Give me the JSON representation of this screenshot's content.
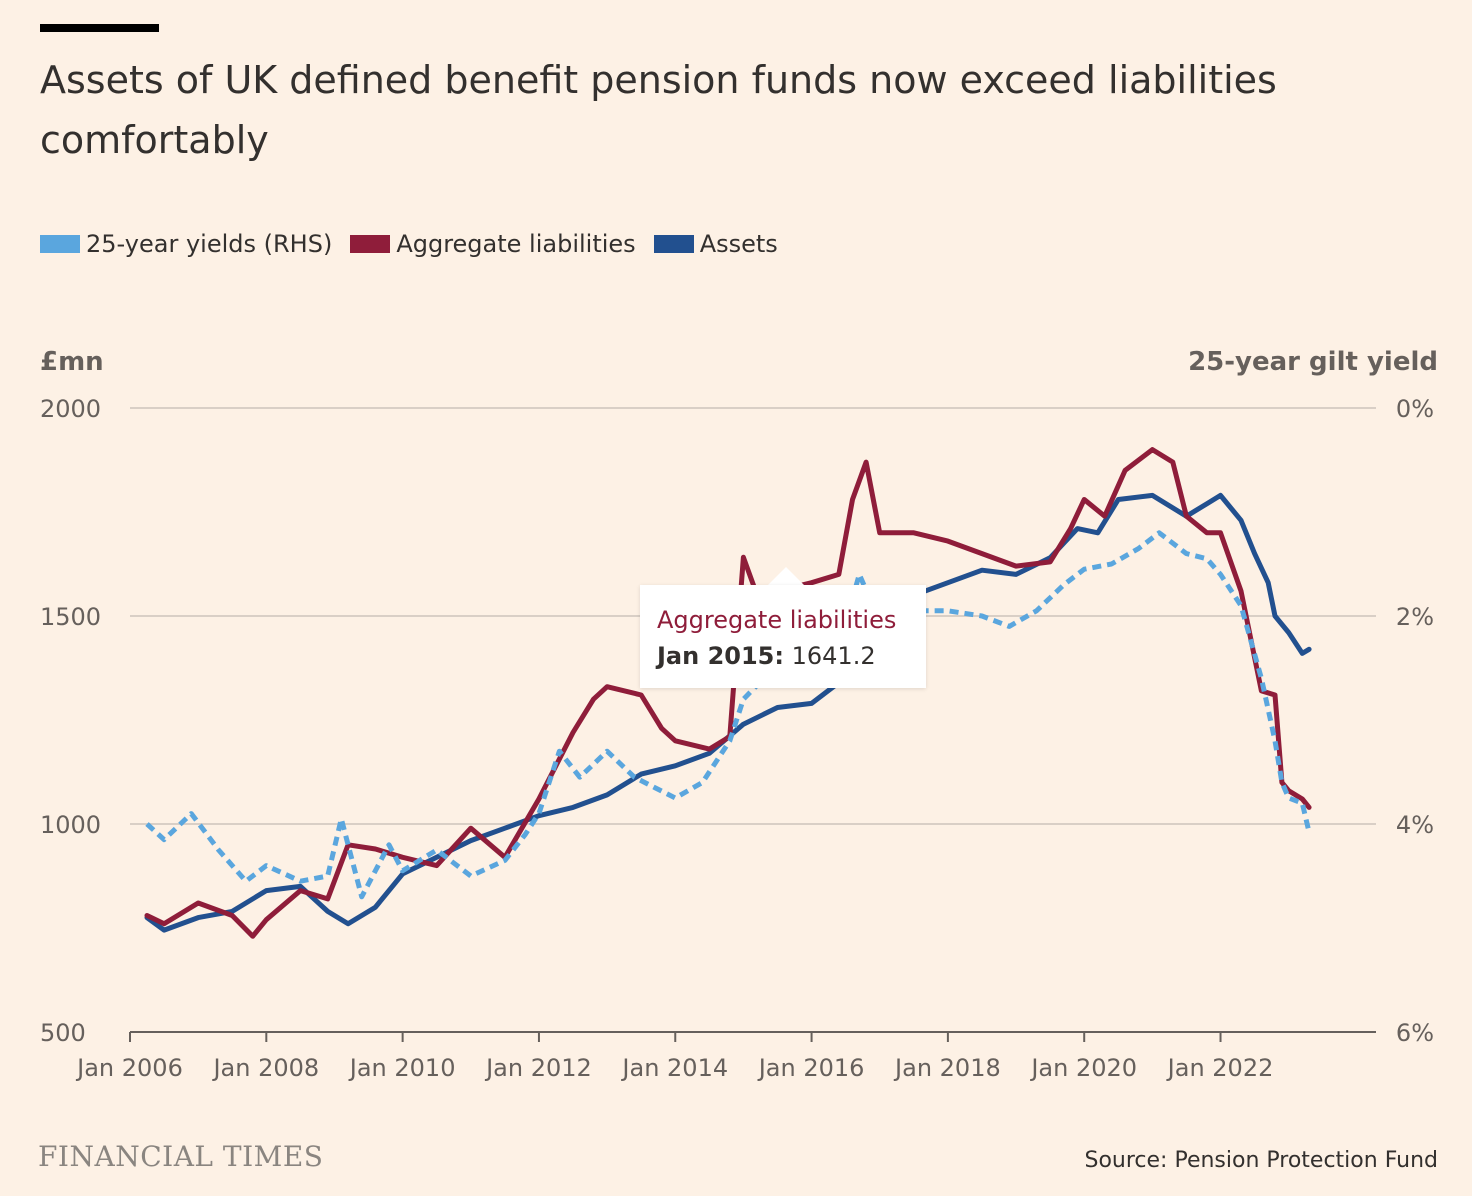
{
  "title": "Assets of UK defined benefit pension funds now exceed liabilities comfortably",
  "legend": [
    {
      "label": "25-year yields (RHS)",
      "color": "#5aa6de"
    },
    {
      "label": "Aggregate liabilities",
      "color": "#8f1d3a"
    },
    {
      "label": "Assets",
      "color": "#22508f"
    }
  ],
  "tooltip": {
    "series": "Aggregate liabilities",
    "date": "Jan 2015:",
    "value": "1641.2"
  },
  "footer": {
    "brand": "FINANCIAL TIMES",
    "source": "Source: Pension Protection Fund"
  },
  "chart_data": {
    "type": "line",
    "y_left": {
      "label": "£mn",
      "range": [
        500,
        2000
      ],
      "ticks": [
        "2000",
        "1500",
        "1000",
        "500"
      ]
    },
    "y_right": {
      "label": "25-year gilt yield",
      "range": [
        0,
        6
      ],
      "inverted": true,
      "ticks": [
        "0%",
        "2%",
        "4%",
        "6%"
      ]
    },
    "x_ticks": [
      "Jan 2006",
      "Jan 2008",
      "Jan 2010",
      "Jan 2012",
      "Jan 2014",
      "Jan 2016",
      "Jan 2018",
      "Jan 2020",
      "Jan 2022"
    ],
    "grid": true,
    "series": [
      {
        "name": "Assets",
        "color": "#22508f",
        "axis": "left",
        "dashed": false,
        "points": [
          [
            2006.25,
            775
          ],
          [
            2006.5,
            745
          ],
          [
            2007.0,
            775
          ],
          [
            2007.5,
            790
          ],
          [
            2008.0,
            840
          ],
          [
            2008.5,
            850
          ],
          [
            2008.9,
            790
          ],
          [
            2009.2,
            760
          ],
          [
            2009.6,
            800
          ],
          [
            2010.0,
            880
          ],
          [
            2010.5,
            920
          ],
          [
            2011.0,
            960
          ],
          [
            2011.5,
            990
          ],
          [
            2012.0,
            1020
          ],
          [
            2012.5,
            1040
          ],
          [
            2013.0,
            1070
          ],
          [
            2013.5,
            1120
          ],
          [
            2014.0,
            1140
          ],
          [
            2014.5,
            1170
          ],
          [
            2015.0,
            1240
          ],
          [
            2015.5,
            1280
          ],
          [
            2016.0,
            1290
          ],
          [
            2016.4,
            1340
          ],
          [
            2016.7,
            1470
          ],
          [
            2017.0,
            1510
          ],
          [
            2017.5,
            1550
          ],
          [
            2018.0,
            1580
          ],
          [
            2018.5,
            1610
          ],
          [
            2019.0,
            1600
          ],
          [
            2019.5,
            1640
          ],
          [
            2019.9,
            1710
          ],
          [
            2020.2,
            1700
          ],
          [
            2020.5,
            1780
          ],
          [
            2021.0,
            1790
          ],
          [
            2021.5,
            1740
          ],
          [
            2021.8,
            1770
          ],
          [
            2022.0,
            1790
          ],
          [
            2022.3,
            1730
          ],
          [
            2022.5,
            1650
          ],
          [
            2022.7,
            1580
          ],
          [
            2022.8,
            1500
          ],
          [
            2023.0,
            1460
          ],
          [
            2023.2,
            1410
          ],
          [
            2023.3,
            1420
          ]
        ]
      },
      {
        "name": "Aggregate liabilities",
        "color": "#8f1d3a",
        "axis": "left",
        "dashed": false,
        "points": [
          [
            2006.25,
            780
          ],
          [
            2006.5,
            760
          ],
          [
            2007.0,
            810
          ],
          [
            2007.5,
            780
          ],
          [
            2007.8,
            730
          ],
          [
            2008.0,
            770
          ],
          [
            2008.5,
            840
          ],
          [
            2008.9,
            820
          ],
          [
            2009.2,
            950
          ],
          [
            2009.6,
            940
          ],
          [
            2010.0,
            920
          ],
          [
            2010.5,
            900
          ],
          [
            2011.0,
            990
          ],
          [
            2011.5,
            920
          ],
          [
            2012.0,
            1060
          ],
          [
            2012.5,
            1220
          ],
          [
            2012.8,
            1300
          ],
          [
            2013.0,
            1330
          ],
          [
            2013.5,
            1310
          ],
          [
            2013.8,
            1230
          ],
          [
            2014.0,
            1200
          ],
          [
            2014.5,
            1180
          ],
          [
            2014.8,
            1210
          ],
          [
            2015.0,
            1641
          ],
          [
            2015.2,
            1550
          ],
          [
            2015.5,
            1560
          ],
          [
            2016.0,
            1580
          ],
          [
            2016.4,
            1600
          ],
          [
            2016.6,
            1780
          ],
          [
            2016.8,
            1870
          ],
          [
            2017.0,
            1700
          ],
          [
            2017.5,
            1700
          ],
          [
            2018.0,
            1680
          ],
          [
            2018.5,
            1650
          ],
          [
            2019.0,
            1620
          ],
          [
            2019.5,
            1630
          ],
          [
            2019.8,
            1710
          ],
          [
            2020.0,
            1780
          ],
          [
            2020.3,
            1740
          ],
          [
            2020.6,
            1850
          ],
          [
            2021.0,
            1900
          ],
          [
            2021.3,
            1870
          ],
          [
            2021.5,
            1740
          ],
          [
            2021.8,
            1700
          ],
          [
            2022.0,
            1700
          ],
          [
            2022.3,
            1560
          ],
          [
            2022.6,
            1320
          ],
          [
            2022.8,
            1310
          ],
          [
            2022.9,
            1100
          ],
          [
            2023.0,
            1080
          ],
          [
            2023.2,
            1060
          ],
          [
            2023.3,
            1040
          ]
        ]
      },
      {
        "name": "25-year yields (RHS)",
        "color": "#5aa6de",
        "axis": "right",
        "dashed": true,
        "points": [
          [
            2006.25,
            4.0
          ],
          [
            2006.5,
            4.15
          ],
          [
            2006.9,
            3.9
          ],
          [
            2007.3,
            4.25
          ],
          [
            2007.7,
            4.55
          ],
          [
            2008.0,
            4.4
          ],
          [
            2008.5,
            4.55
          ],
          [
            2008.9,
            4.5
          ],
          [
            2009.1,
            3.95
          ],
          [
            2009.4,
            4.7
          ],
          [
            2009.8,
            4.2
          ],
          [
            2010.0,
            4.45
          ],
          [
            2010.5,
            4.25
          ],
          [
            2011.0,
            4.5
          ],
          [
            2011.5,
            4.35
          ],
          [
            2011.8,
            4.1
          ],
          [
            2012.0,
            3.9
          ],
          [
            2012.3,
            3.3
          ],
          [
            2012.6,
            3.55
          ],
          [
            2013.0,
            3.3
          ],
          [
            2013.4,
            3.55
          ],
          [
            2013.7,
            3.65
          ],
          [
            2014.0,
            3.75
          ],
          [
            2014.4,
            3.6
          ],
          [
            2014.8,
            3.2
          ],
          [
            2015.0,
            2.8
          ],
          [
            2015.3,
            2.6
          ],
          [
            2015.7,
            2.65
          ],
          [
            2016.0,
            2.55
          ],
          [
            2016.4,
            2.3
          ],
          [
            2016.7,
            1.6
          ],
          [
            2017.0,
            2.05
          ],
          [
            2017.5,
            1.95
          ],
          [
            2018.0,
            1.95
          ],
          [
            2018.5,
            2.0
          ],
          [
            2018.9,
            2.1
          ],
          [
            2019.3,
            1.95
          ],
          [
            2019.7,
            1.7
          ],
          [
            2020.0,
            1.55
          ],
          [
            2020.4,
            1.5
          ],
          [
            2020.8,
            1.35
          ],
          [
            2021.1,
            1.2
          ],
          [
            2021.5,
            1.4
          ],
          [
            2021.8,
            1.45
          ],
          [
            2022.0,
            1.6
          ],
          [
            2022.3,
            1.9
          ],
          [
            2022.6,
            2.6
          ],
          [
            2022.8,
            3.2
          ],
          [
            2022.9,
            3.6
          ],
          [
            2023.0,
            3.75
          ],
          [
            2023.2,
            3.8
          ],
          [
            2023.3,
            4.08
          ]
        ]
      }
    ]
  }
}
